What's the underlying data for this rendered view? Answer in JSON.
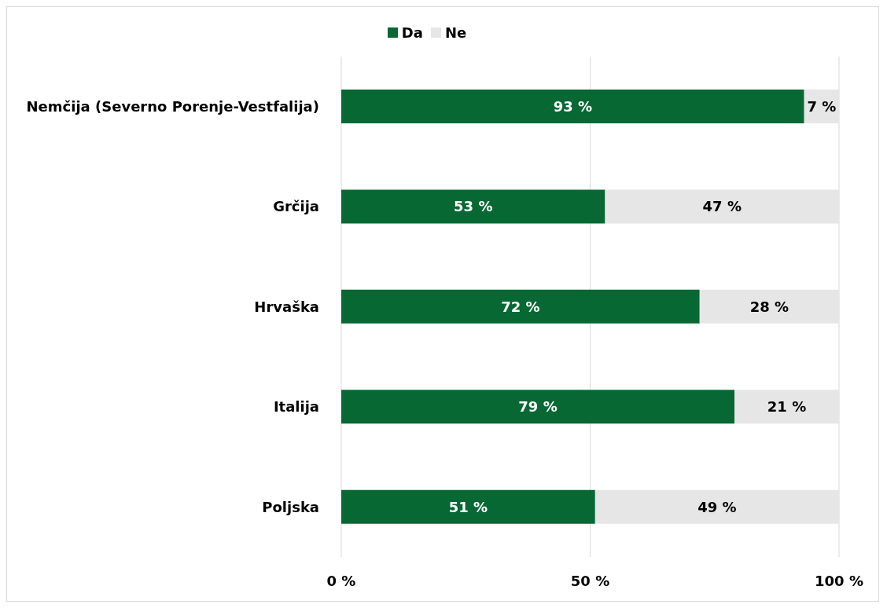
{
  "chart_data": {
    "type": "bar",
    "orientation": "horizontal",
    "stacked": true,
    "categories": [
      "Nemčija (Severno Porenje-Vestfalija)",
      "Grčija",
      "Hrvaška",
      "Italija",
      "Poljska"
    ],
    "series": [
      {
        "name": "Da",
        "color": "#076834",
        "values": [
          93,
          53,
          72,
          79,
          51
        ],
        "value_labels": [
          "93 %",
          "53 %",
          "72 %",
          "79 %",
          "51 %"
        ]
      },
      {
        "name": "Ne",
        "color": "#e6e6e6",
        "values": [
          7,
          47,
          28,
          21,
          49
        ],
        "value_labels": [
          "7 %",
          "47 %",
          "28 %",
          "21 %",
          "49 %"
        ]
      }
    ],
    "xlim": [
      0,
      100
    ],
    "xticks": [
      {
        "value": 0,
        "label": "0 %"
      },
      {
        "value": 50,
        "label": "50 %"
      },
      {
        "value": 100,
        "label": "100 %"
      }
    ],
    "grid": "x",
    "legend": "top"
  }
}
